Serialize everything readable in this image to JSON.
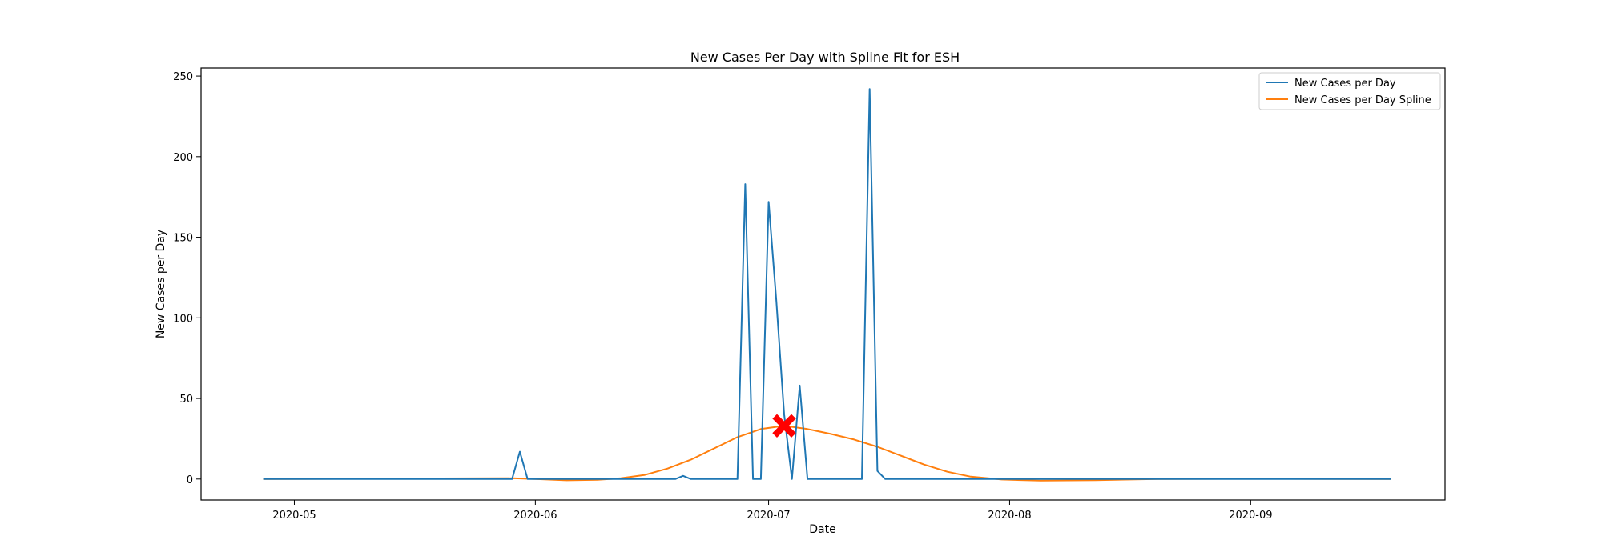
{
  "chart_data": {
    "type": "line",
    "title": "New Cases Per Day with Spline Fit for ESH",
    "xlabel": "Date",
    "ylabel": "New Cases per Day",
    "x_axis": {
      "type": "date",
      "range": [
        "2020-04-19",
        "2020-09-26"
      ],
      "ticks": [
        "2020-05-01",
        "2020-06-01",
        "2020-07-01",
        "2020-08-01",
        "2020-09-01"
      ],
      "tick_labels": [
        "2020-05",
        "2020-06",
        "2020-07",
        "2020-08",
        "2020-09"
      ]
    },
    "y_axis": {
      "range": [
        -13,
        255
      ],
      "ticks": [
        0,
        50,
        100,
        150,
        200,
        250
      ],
      "tick_labels": [
        "0",
        "50",
        "100",
        "150",
        "200",
        "250"
      ]
    },
    "grid": false,
    "legend": {
      "placement": "top-right"
    },
    "series": [
      {
        "name": "New Cases per Day",
        "color": "#1f77b4",
        "points": [
          [
            "2020-04-27",
            0
          ],
          [
            "2020-05-29",
            0
          ],
          [
            "2020-05-30",
            17
          ],
          [
            "2020-05-31",
            0
          ],
          [
            "2020-06-19",
            0
          ],
          [
            "2020-06-20",
            2
          ],
          [
            "2020-06-21",
            0
          ],
          [
            "2020-06-27",
            0
          ],
          [
            "2020-06-28",
            183
          ],
          [
            "2020-06-29",
            0
          ],
          [
            "2020-06-30",
            0
          ],
          [
            "2020-07-01",
            172
          ],
          [
            "2020-07-02",
            110
          ],
          [
            "2020-07-03",
            40
          ],
          [
            "2020-07-04",
            0
          ],
          [
            "2020-07-05",
            58
          ],
          [
            "2020-07-06",
            0
          ],
          [
            "2020-07-13",
            0
          ],
          [
            "2020-07-14",
            242
          ],
          [
            "2020-07-15",
            5
          ],
          [
            "2020-07-16",
            0
          ],
          [
            "2020-09-19",
            0
          ]
        ]
      },
      {
        "name": "New Cases per Day Spline",
        "color": "#ff7f0e",
        "points": [
          [
            "2020-04-27",
            0
          ],
          [
            "2020-05-15",
            0.3
          ],
          [
            "2020-05-29",
            0.5
          ],
          [
            "2020-06-01",
            0
          ],
          [
            "2020-06-05",
            -0.8
          ],
          [
            "2020-06-09",
            -0.5
          ],
          [
            "2020-06-12",
            0.5
          ],
          [
            "2020-06-15",
            2.5
          ],
          [
            "2020-06-18",
            6.5
          ],
          [
            "2020-06-21",
            12
          ],
          [
            "2020-06-24",
            19
          ],
          [
            "2020-06-27",
            26
          ],
          [
            "2020-06-30",
            31
          ],
          [
            "2020-07-03",
            33
          ],
          [
            "2020-07-06",
            31
          ],
          [
            "2020-07-09",
            28
          ],
          [
            "2020-07-12",
            24.5
          ],
          [
            "2020-07-15",
            20
          ],
          [
            "2020-07-18",
            14.5
          ],
          [
            "2020-07-21",
            9
          ],
          [
            "2020-07-24",
            4.5
          ],
          [
            "2020-07-27",
            1.5
          ],
          [
            "2020-07-31",
            -0.3
          ],
          [
            "2020-08-05",
            -1
          ],
          [
            "2020-08-12",
            -0.7
          ],
          [
            "2020-08-20",
            0
          ],
          [
            "2020-09-01",
            0.2
          ],
          [
            "2020-09-19",
            0
          ]
        ]
      }
    ],
    "annotations": [
      {
        "type": "marker",
        "shape": "X",
        "color": "#ff0000",
        "x": "2020-07-03",
        "y": 33
      }
    ]
  }
}
